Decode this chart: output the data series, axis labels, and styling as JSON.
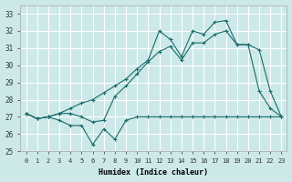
{
  "xlabel": "Humidex (Indice chaleur)",
  "bg_color": "#cce8e8",
  "grid_color": "#ffffff",
  "line_color": "#1a6b6b",
  "ylim": [
    25,
    33.5
  ],
  "xlim": [
    -0.5,
    23.5
  ],
  "yticks": [
    25,
    26,
    27,
    28,
    29,
    30,
    31,
    32,
    33
  ],
  "xticks": [
    0,
    1,
    2,
    3,
    4,
    5,
    6,
    7,
    8,
    9,
    10,
    11,
    12,
    13,
    14,
    15,
    16,
    17,
    18,
    19,
    20,
    21,
    22,
    23
  ],
  "line_min": [
    27.2,
    26.9,
    27.0,
    26.8,
    26.5,
    26.5,
    25.4,
    26.3,
    25.7,
    26.8,
    27.0,
    27.0,
    27.0,
    27.0,
    27.0,
    27.0,
    27.0,
    27.0,
    27.0,
    27.0,
    27.0,
    27.0,
    27.0,
    27.0
  ],
  "line_mid": [
    27.2,
    26.9,
    27.0,
    27.2,
    27.2,
    27.0,
    26.7,
    26.8,
    28.2,
    28.8,
    29.5,
    30.2,
    30.8,
    31.1,
    30.3,
    31.3,
    31.3,
    31.8,
    32.0,
    31.2,
    31.2,
    28.5,
    27.5,
    27.0
  ],
  "line_max": [
    27.2,
    26.9,
    27.0,
    27.2,
    27.5,
    27.8,
    28.0,
    28.4,
    28.8,
    29.2,
    29.8,
    30.3,
    32.0,
    31.5,
    30.5,
    32.0,
    31.8,
    32.5,
    32.6,
    31.2,
    31.2,
    30.9,
    28.5,
    27.0
  ]
}
